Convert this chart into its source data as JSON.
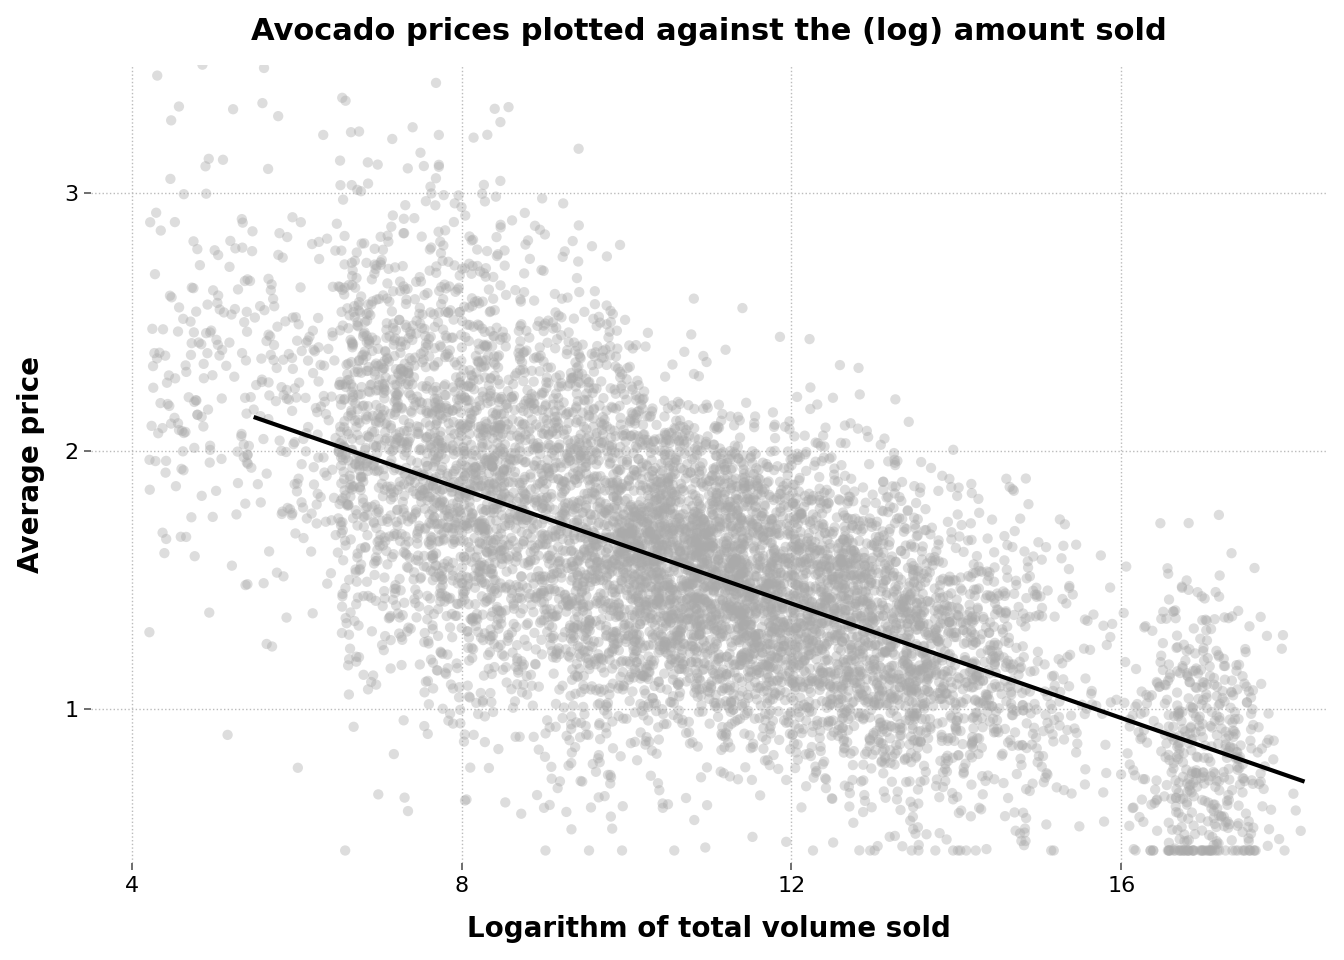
{
  "title": "Avocado prices plotted against the (log) amount sold",
  "xlabel": "Logarithm of total volume sold",
  "ylabel": "Average price",
  "xlim": [
    3.5,
    18.5
  ],
  "ylim": [
    0.4,
    3.5
  ],
  "xticks": [
    4,
    8,
    12,
    16
  ],
  "yticks": [
    1,
    2,
    3
  ],
  "scatter_color": "#aaaaaa",
  "scatter_alpha": 0.4,
  "scatter_size": 55,
  "regression_color": "#000000",
  "regression_lw": 3.0,
  "regression_x0": 5.5,
  "regression_x1": 18.2,
  "regression_y0": 2.13,
  "regression_y1": 0.72,
  "n_points": 8000,
  "seed": 42,
  "background_color": "#ffffff",
  "grid_color": "#bbbbbb",
  "title_fontsize": 22,
  "label_fontsize": 20,
  "tick_fontsize": 16
}
